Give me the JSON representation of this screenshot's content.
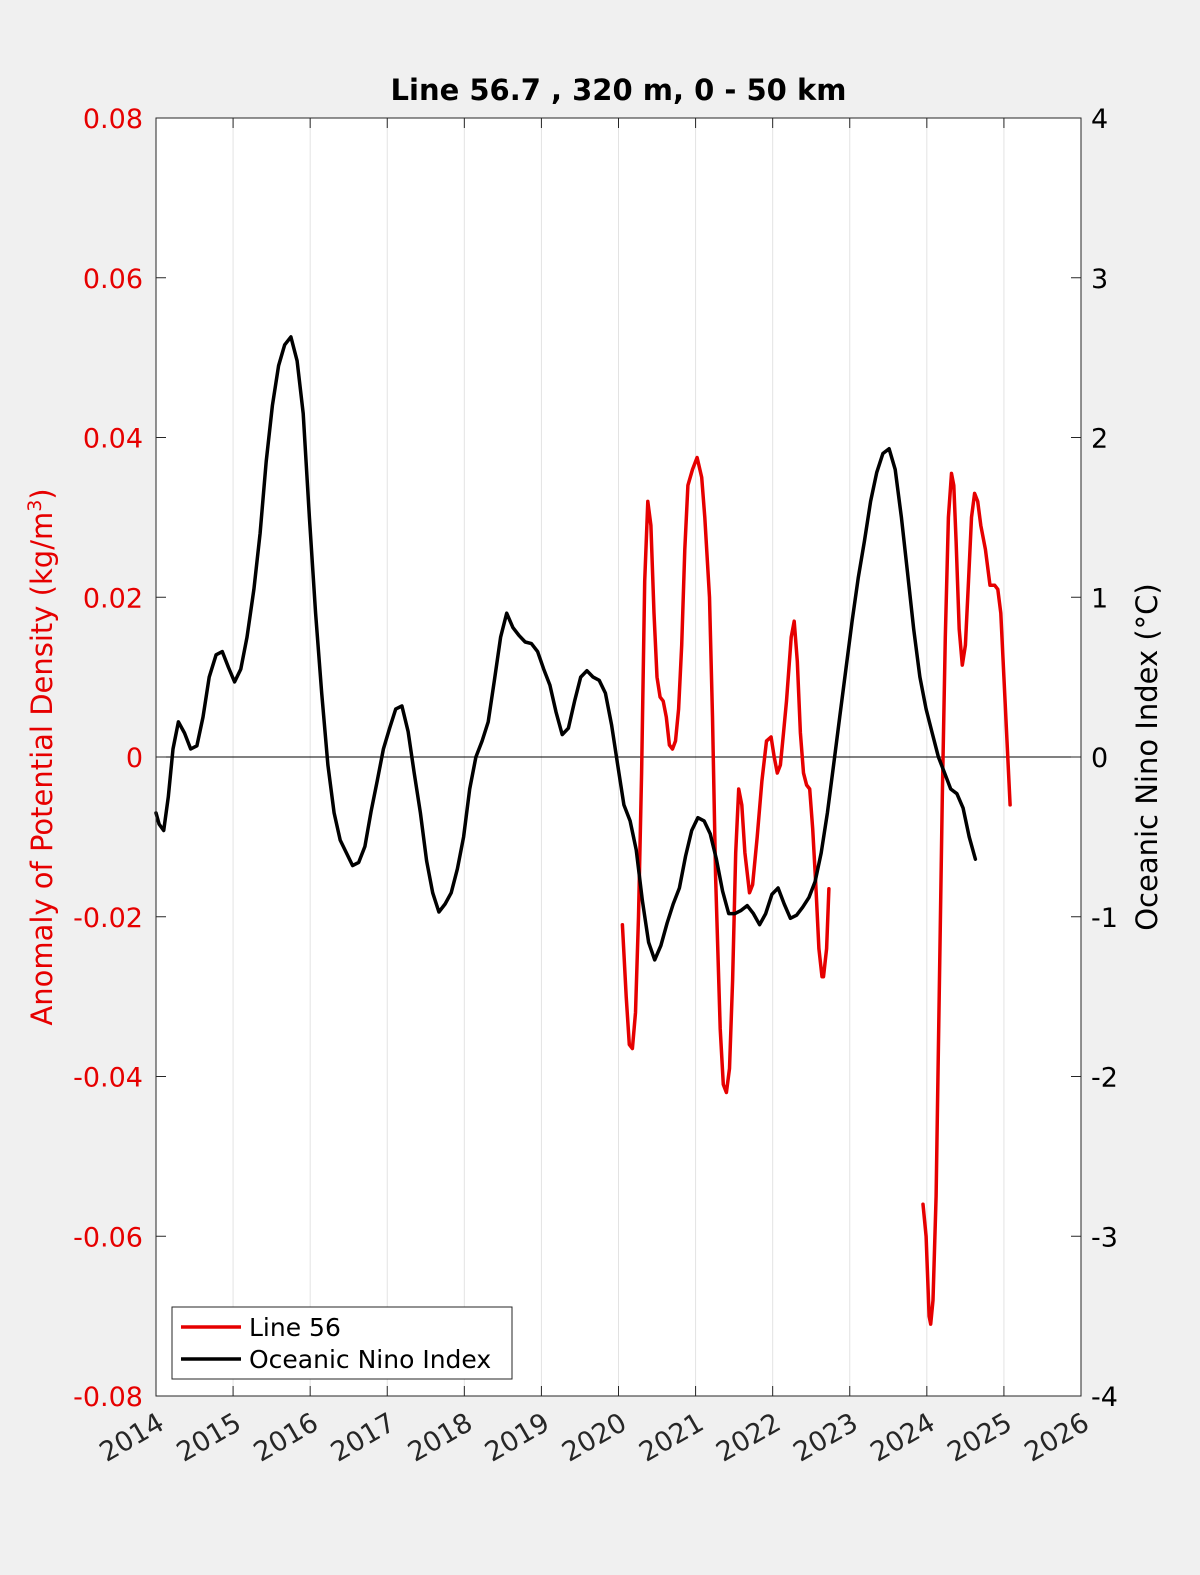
{
  "chart_data": {
    "type": "line",
    "title": "Line 56.7 , 320 m, 0 - 50 km",
    "xlim": [
      2014,
      2026
    ],
    "x_ticks": [
      "2014",
      "2015",
      "2016",
      "2017",
      "2018",
      "2019",
      "2020",
      "2021",
      "2022",
      "2023",
      "2024",
      "2025",
      "2026"
    ],
    "left_axis": {
      "label": "Anomaly of Potential Density (kg/m",
      "label_sup": "3",
      "label_end": ")",
      "ylim": [
        -0.08,
        0.08
      ],
      "ticks": [
        "-0.08",
        "-0.06",
        "-0.04",
        "-0.02",
        "0",
        "0.02",
        "0.04",
        "0.06",
        "0.08"
      ],
      "color": "#e60000"
    },
    "right_axis": {
      "label": "Oceanic Nino Index (°C)",
      "ylim": [
        -4,
        4
      ],
      "ticks": [
        "-4",
        "-3",
        "-2",
        "-1",
        "0",
        "1",
        "2",
        "3",
        "4"
      ],
      "color": "#000000"
    },
    "grid": "vertical",
    "legend_position": "bottom-left",
    "series": [
      {
        "name": "Line 56",
        "axis": "left",
        "color": "#e60000",
        "segments": [
          [
            [
              2020.05,
              -0.021
            ],
            [
              2020.1,
              -0.03
            ],
            [
              2020.14,
              -0.036
            ],
            [
              2020.18,
              -0.0365
            ],
            [
              2020.22,
              -0.032
            ],
            [
              2020.26,
              -0.02
            ],
            [
              2020.3,
              -0.002
            ],
            [
              2020.34,
              0.022
            ],
            [
              2020.38,
              0.032
            ],
            [
              2020.42,
              0.029
            ],
            [
              2020.46,
              0.018
            ],
            [
              2020.5,
              0.01
            ],
            [
              2020.54,
              0.0075
            ],
            [
              2020.58,
              0.007
            ],
            [
              2020.62,
              0.005
            ],
            [
              2020.66,
              0.0015
            ],
            [
              2020.7,
              0.001
            ],
            [
              2020.74,
              0.002
            ],
            [
              2020.78,
              0.006
            ],
            [
              2020.82,
              0.014
            ],
            [
              2020.86,
              0.026
            ],
            [
              2020.9,
              0.034
            ],
            [
              2020.96,
              0.036
            ],
            [
              2021.02,
              0.0375
            ],
            [
              2021.08,
              0.035
            ],
            [
              2021.12,
              0.03
            ],
            [
              2021.18,
              0.02
            ],
            [
              2021.22,
              0.005
            ],
            [
              2021.26,
              -0.015
            ],
            [
              2021.32,
              -0.034
            ],
            [
              2021.36,
              -0.041
            ],
            [
              2021.4,
              -0.042
            ],
            [
              2021.44,
              -0.039
            ],
            [
              2021.48,
              -0.028
            ],
            [
              2021.52,
              -0.012
            ],
            [
              2021.56,
              -0.004
            ],
            [
              2021.6,
              -0.006
            ],
            [
              2021.64,
              -0.012
            ],
            [
              2021.7,
              -0.017
            ],
            [
              2021.74,
              -0.016
            ],
            [
              2021.8,
              -0.01
            ],
            [
              2021.86,
              -0.003
            ],
            [
              2021.92,
              0.002
            ],
            [
              2021.98,
              0.0025
            ],
            [
              2022.02,
              0.0
            ],
            [
              2022.06,
              -0.002
            ],
            [
              2022.1,
              -0.001
            ],
            [
              2022.14,
              0.003
            ],
            [
              2022.18,
              0.007
            ],
            [
              2022.24,
              0.015
            ],
            [
              2022.28,
              0.017
            ],
            [
              2022.32,
              0.012
            ],
            [
              2022.36,
              0.003
            ],
            [
              2022.4,
              -0.002
            ],
            [
              2022.44,
              -0.0035
            ],
            [
              2022.48,
              -0.004
            ],
            [
              2022.52,
              -0.009
            ],
            [
              2022.56,
              -0.016
            ],
            [
              2022.6,
              -0.024
            ],
            [
              2022.64,
              -0.0275
            ],
            [
              2022.66,
              -0.0275
            ],
            [
              2022.7,
              -0.024
            ],
            [
              2022.73,
              -0.0165
            ]
          ],
          [
            [
              2023.95,
              -0.056
            ],
            [
              2023.99,
              -0.06
            ],
            [
              2024.03,
              -0.07
            ],
            [
              2024.05,
              -0.071
            ],
            [
              2024.08,
              -0.068
            ],
            [
              2024.12,
              -0.055
            ],
            [
              2024.16,
              -0.03
            ],
            [
              2024.2,
              -0.005
            ],
            [
              2024.24,
              0.015
            ],
            [
              2024.28,
              0.03
            ],
            [
              2024.32,
              0.0355
            ],
            [
              2024.35,
              0.034
            ],
            [
              2024.38,
              0.027
            ],
            [
              2024.42,
              0.016
            ],
            [
              2024.46,
              0.0115
            ],
            [
              2024.5,
              0.014
            ],
            [
              2024.54,
              0.022
            ],
            [
              2024.58,
              0.03
            ],
            [
              2024.62,
              0.033
            ],
            [
              2024.66,
              0.032
            ],
            [
              2024.7,
              0.029
            ],
            [
              2024.76,
              0.026
            ],
            [
              2024.82,
              0.0215
            ],
            [
              2024.88,
              0.0215
            ],
            [
              2024.92,
              0.021
            ],
            [
              2024.96,
              0.018
            ],
            [
              2025.0,
              0.01
            ],
            [
              2025.04,
              0.002
            ],
            [
              2025.08,
              -0.006
            ]
          ]
        ]
      },
      {
        "name": "Oceanic Nino Index",
        "axis": "right",
        "color": "#000000",
        "segments": [
          [
            [
              2014.0,
              -0.35
            ],
            [
              2014.04,
              -0.42
            ],
            [
              2014.1,
              -0.46
            ],
            [
              2014.16,
              -0.25
            ],
            [
              2014.22,
              0.05
            ],
            [
              2014.29,
              0.22
            ],
            [
              2014.37,
              0.15
            ],
            [
              2014.45,
              0.05
            ],
            [
              2014.53,
              0.07
            ],
            [
              2014.61,
              0.25
            ],
            [
              2014.69,
              0.5
            ],
            [
              2014.78,
              0.64
            ],
            [
              2014.86,
              0.66
            ],
            [
              2014.94,
              0.56
            ],
            [
              2015.02,
              0.47
            ],
            [
              2015.1,
              0.55
            ],
            [
              2015.18,
              0.75
            ],
            [
              2015.27,
              1.05
            ],
            [
              2015.35,
              1.4
            ],
            [
              2015.43,
              1.85
            ],
            [
              2015.51,
              2.2
            ],
            [
              2015.59,
              2.45
            ],
            [
              2015.67,
              2.58
            ],
            [
              2015.75,
              2.63
            ],
            [
              2015.83,
              2.48
            ],
            [
              2015.91,
              2.15
            ],
            [
              2015.99,
              1.5
            ],
            [
              2016.07,
              0.9
            ],
            [
              2016.15,
              0.4
            ],
            [
              2016.23,
              -0.05
            ],
            [
              2016.31,
              -0.35
            ],
            [
              2016.39,
              -0.52
            ],
            [
              2016.47,
              -0.6
            ],
            [
              2016.55,
              -0.68
            ],
            [
              2016.63,
              -0.66
            ],
            [
              2016.71,
              -0.56
            ],
            [
              2016.79,
              -0.34
            ],
            [
              2016.87,
              -0.15
            ],
            [
              2016.95,
              0.05
            ],
            [
              2017.03,
              0.18
            ],
            [
              2017.11,
              0.3
            ],
            [
              2017.19,
              0.32
            ],
            [
              2017.27,
              0.16
            ],
            [
              2017.35,
              -0.1
            ],
            [
              2017.43,
              -0.35
            ],
            [
              2017.51,
              -0.65
            ],
            [
              2017.59,
              -0.85
            ],
            [
              2017.67,
              -0.97
            ],
            [
              2017.75,
              -0.92
            ],
            [
              2017.83,
              -0.85
            ],
            [
              2017.91,
              -0.7
            ],
            [
              2017.99,
              -0.5
            ],
            [
              2018.07,
              -0.2
            ],
            [
              2018.15,
              0.0
            ],
            [
              2018.23,
              0.1
            ],
            [
              2018.31,
              0.22
            ],
            [
              2018.39,
              0.48
            ],
            [
              2018.47,
              0.75
            ],
            [
              2018.55,
              0.9
            ],
            [
              2018.63,
              0.81
            ],
            [
              2018.71,
              0.76
            ],
            [
              2018.79,
              0.72
            ],
            [
              2018.87,
              0.71
            ],
            [
              2018.95,
              0.66
            ],
            [
              2019.03,
              0.55
            ],
            [
              2019.11,
              0.45
            ],
            [
              2019.19,
              0.28
            ],
            [
              2019.27,
              0.14
            ],
            [
              2019.35,
              0.18
            ],
            [
              2019.43,
              0.35
            ],
            [
              2019.51,
              0.5
            ],
            [
              2019.59,
              0.54
            ],
            [
              2019.67,
              0.5
            ],
            [
              2019.75,
              0.48
            ],
            [
              2019.83,
              0.4
            ],
            [
              2019.91,
              0.2
            ],
            [
              2019.99,
              -0.05
            ],
            [
              2020.07,
              -0.3
            ],
            [
              2020.15,
              -0.4
            ],
            [
              2020.23,
              -0.58
            ],
            [
              2020.31,
              -0.9
            ],
            [
              2020.39,
              -1.16
            ],
            [
              2020.47,
              -1.27
            ],
            [
              2020.55,
              -1.18
            ],
            [
              2020.63,
              -1.04
            ],
            [
              2020.71,
              -0.92
            ],
            [
              2020.79,
              -0.82
            ],
            [
              2020.87,
              -0.62
            ],
            [
              2020.95,
              -0.46
            ],
            [
              2021.03,
              -0.38
            ],
            [
              2021.11,
              -0.4
            ],
            [
              2021.19,
              -0.48
            ],
            [
              2021.27,
              -0.64
            ],
            [
              2021.35,
              -0.84
            ],
            [
              2021.43,
              -0.98
            ],
            [
              2021.51,
              -0.98
            ],
            [
              2021.59,
              -0.96
            ],
            [
              2021.67,
              -0.93
            ],
            [
              2021.75,
              -0.98
            ],
            [
              2021.83,
              -1.05
            ],
            [
              2021.91,
              -0.98
            ],
            [
              2021.99,
              -0.86
            ],
            [
              2022.07,
              -0.82
            ],
            [
              2022.15,
              -0.92
            ],
            [
              2022.23,
              -1.01
            ],
            [
              2022.31,
              -0.99
            ],
            [
              2022.39,
              -0.94
            ],
            [
              2022.47,
              -0.88
            ],
            [
              2022.55,
              -0.78
            ],
            [
              2022.63,
              -0.6
            ],
            [
              2022.71,
              -0.35
            ],
            [
              2022.79,
              -0.05
            ],
            [
              2022.87,
              0.25
            ],
            [
              2022.95,
              0.55
            ],
            [
              2023.03,
              0.85
            ],
            [
              2023.11,
              1.12
            ],
            [
              2023.19,
              1.35
            ],
            [
              2023.27,
              1.6
            ],
            [
              2023.35,
              1.78
            ],
            [
              2023.43,
              1.9
            ],
            [
              2023.51,
              1.93
            ],
            [
              2023.59,
              1.8
            ],
            [
              2023.67,
              1.5
            ],
            [
              2023.75,
              1.15
            ],
            [
              2023.83,
              0.8
            ],
            [
              2023.91,
              0.5
            ],
            [
              2023.99,
              0.3
            ],
            [
              2024.07,
              0.15
            ],
            [
              2024.15,
              0.0
            ],
            [
              2024.23,
              -0.1
            ],
            [
              2024.31,
              -0.2
            ],
            [
              2024.39,
              -0.23
            ],
            [
              2024.47,
              -0.32
            ],
            [
              2024.55,
              -0.5
            ],
            [
              2024.63,
              -0.64
            ]
          ]
        ]
      }
    ]
  }
}
